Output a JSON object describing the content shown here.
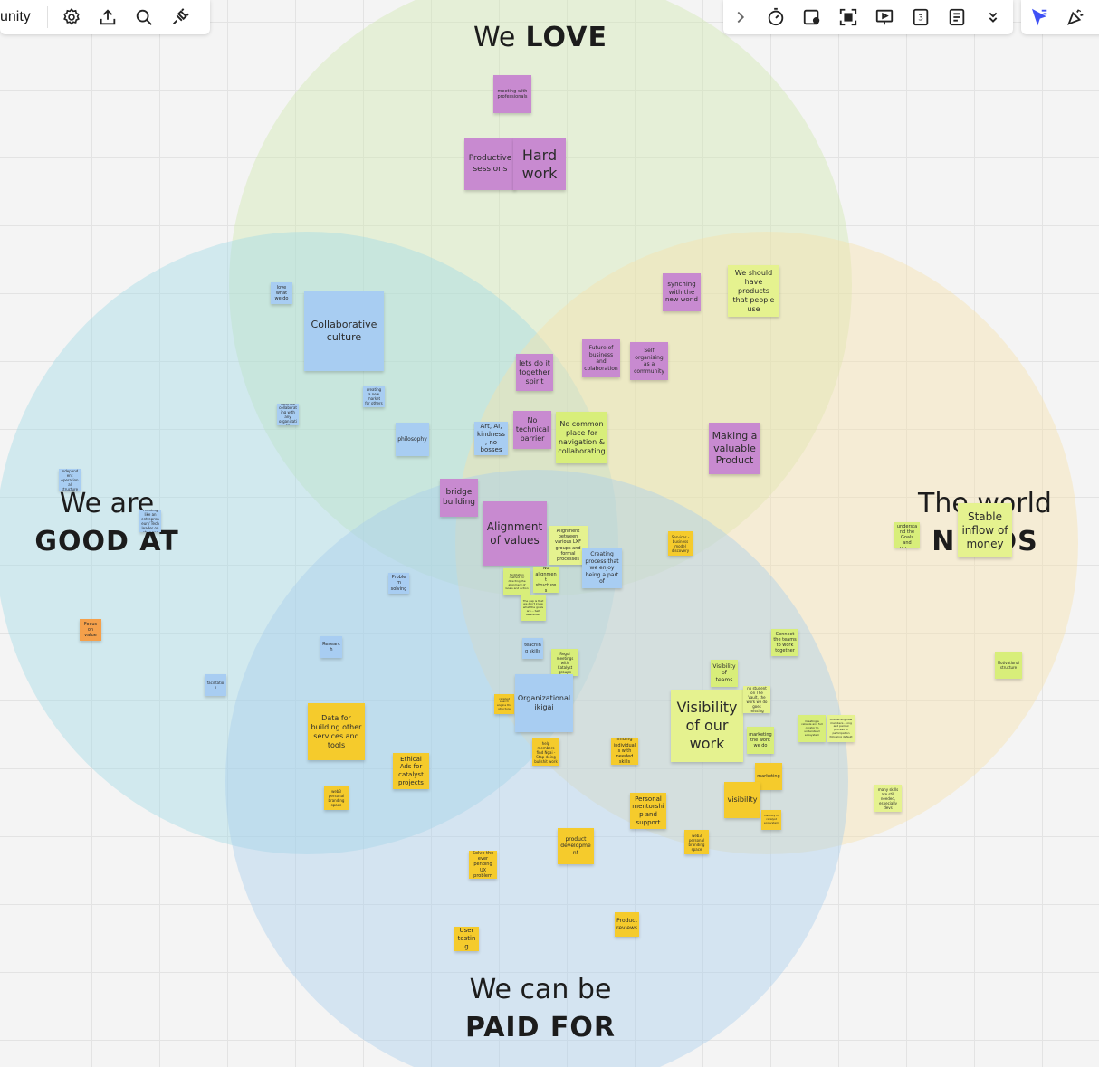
{
  "board": {
    "name": "unity"
  },
  "toolbar_left": {
    "icons": [
      "settings-icon",
      "share-upload-icon",
      "search-icon",
      "plugin-icon"
    ]
  },
  "toolbar_right": {
    "icons": [
      "chevron-right-icon",
      "timer-icon",
      "card-icon",
      "focus-icon",
      "present-icon",
      "counter-icon",
      "notes-icon",
      "chevrons-down-icon"
    ]
  },
  "toolbar_far_right": {
    "icons": [
      "cursor-icon",
      "celebrate-icon"
    ]
  },
  "colors": {
    "purple": "#c88ad0",
    "blue": "#a8cdf2",
    "green": "#d8ee7a",
    "yellow": "#f5cb2c",
    "orange": "#f5a04a",
    "lime": "#e5f28f"
  },
  "circles": {
    "love": {
      "line1": "We",
      "line2": "LOVE"
    },
    "good": {
      "line1": "We are",
      "line2": "GOOD AT"
    },
    "need": {
      "line1": "The world",
      "line2": "NEEDS"
    },
    "paid": {
      "line1": "We can be",
      "line2": "PAID FOR"
    }
  },
  "notes": [
    {
      "text": "meeting with professionals",
      "color": "purple"
    },
    {
      "text": "Productive sessions",
      "color": "purple"
    },
    {
      "text": "Hard work",
      "color": "purple"
    },
    {
      "text": "love what we do",
      "color": "blue"
    },
    {
      "text": "Collaborative culture",
      "color": "blue"
    },
    {
      "text": "synching with the new world",
      "color": "purple"
    },
    {
      "text": "We should have products that people use",
      "color": "lime"
    },
    {
      "text": "Future of business and colaboration",
      "color": "purple"
    },
    {
      "text": "Self organising as a community",
      "color": "purple"
    },
    {
      "text": "lets do it together spirit",
      "color": "purple"
    },
    {
      "text": "creating a new market for others",
      "color": "blue"
    },
    {
      "text": "Open to collaborating with any organization",
      "color": "blue"
    },
    {
      "text": "philosophy",
      "color": "blue"
    },
    {
      "text": "Art, AI, kindness, no bosses",
      "color": "blue"
    },
    {
      "text": "No technical barrier",
      "color": "purple"
    },
    {
      "text": "No common place for navigation & collaborating",
      "color": "green"
    },
    {
      "text": "Making a valuable Product",
      "color": "purple"
    },
    {
      "text": "Creating independent operational structures",
      "color": "blue"
    },
    {
      "text": "Thinking like an entrepreneur / Tech leader on changes",
      "color": "blue"
    },
    {
      "text": "bridge building",
      "color": "purple"
    },
    {
      "text": "Alignment of values",
      "color": "purple"
    },
    {
      "text": "Alignment between various LXF groups and formal processes",
      "color": "lime"
    },
    {
      "text": "Creating process that we enjoy being a part of",
      "color": "blue"
    },
    {
      "text": "Services - business model discovery",
      "color": "yellow"
    },
    {
      "text": "Stable inflow of money",
      "color": "lime"
    },
    {
      "text": "People understand the Goals and Values",
      "color": "green"
    },
    {
      "text": "Problem solving",
      "color": "blue"
    },
    {
      "text": "facilitation method for directing the alignment of Goals and Action",
      "color": "green"
    },
    {
      "text": "No alignment structures",
      "color": "green"
    },
    {
      "text": "The gap is that we don't know what the goals are -- Self Awareness",
      "color": "green"
    },
    {
      "text": "Focus on value",
      "color": "orange"
    },
    {
      "text": "Research",
      "color": "blue"
    },
    {
      "text": "teaching skills",
      "color": "blue"
    },
    {
      "text": "Regul meetings with Catalyst groups",
      "color": "green"
    },
    {
      "text": "Connect the teams to work together",
      "color": "green"
    },
    {
      "text": "Motivational structure",
      "color": "green"
    },
    {
      "text": "Visibility of teams",
      "color": "green"
    },
    {
      "text": "facilitation",
      "color": "blue"
    },
    {
      "text": "catalyst search engine the structure",
      "color": "yellow"
    },
    {
      "text": "Organizational ikigai",
      "color": "blue"
    },
    {
      "text": "Visibility of our work",
      "color": "lime"
    },
    {
      "text": "no student on The Vault, the work we do goes missing",
      "color": "lime"
    },
    {
      "text": "Creating a reliable and full curator to understand ecosystem",
      "color": "green"
    },
    {
      "text": "Onboarding new members - long and painful process to participation following default",
      "color": "lime"
    },
    {
      "text": "Data for building other services and tools",
      "color": "yellow"
    },
    {
      "text": "Ethical Ads for catalyst projects",
      "color": "yellow"
    },
    {
      "text": "help members find Ngai - Stop doing bullshit work",
      "color": "yellow"
    },
    {
      "text": "finding individuals with needed skills",
      "color": "yellow"
    },
    {
      "text": "marketing the work we do",
      "color": "green"
    },
    {
      "text": "marketing",
      "color": "yellow"
    },
    {
      "text": "visibility",
      "color": "yellow"
    },
    {
      "text": "Visibility in catalyst ecosystem",
      "color": "yellow"
    },
    {
      "text": "many skills are still needed, especially devs",
      "color": "lime"
    },
    {
      "text": "web3 personal branding space",
      "color": "yellow"
    },
    {
      "text": "Personal mentorship and support",
      "color": "yellow"
    },
    {
      "text": "product development",
      "color": "yellow"
    },
    {
      "text": "web3 personal branding space",
      "color": "yellow"
    },
    {
      "text": "Solve the ever pending UX problem",
      "color": "yellow"
    },
    {
      "text": "Product reviews",
      "color": "yellow"
    },
    {
      "text": "User testing",
      "color": "yellow"
    }
  ]
}
